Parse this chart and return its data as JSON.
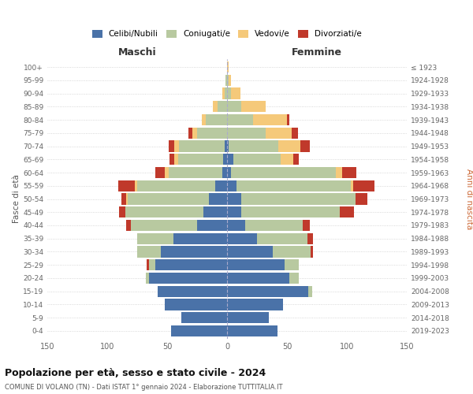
{
  "age_groups": [
    "0-4",
    "5-9",
    "10-14",
    "15-19",
    "20-24",
    "25-29",
    "30-34",
    "35-39",
    "40-44",
    "45-49",
    "50-54",
    "55-59",
    "60-64",
    "65-69",
    "70-74",
    "75-79",
    "80-84",
    "85-89",
    "90-94",
    "95-99",
    "100+"
  ],
  "birth_years": [
    "2019-2023",
    "2014-2018",
    "2009-2013",
    "2004-2008",
    "1999-2003",
    "1994-1998",
    "1989-1993",
    "1984-1988",
    "1979-1983",
    "1974-1978",
    "1969-1973",
    "1964-1968",
    "1959-1963",
    "1954-1958",
    "1949-1953",
    "1944-1948",
    "1939-1943",
    "1934-1938",
    "1929-1933",
    "1924-1928",
    "≤ 1923"
  ],
  "male": {
    "celibi": [
      47,
      38,
      52,
      58,
      65,
      60,
      55,
      45,
      25,
      20,
      15,
      10,
      4,
      3,
      2,
      0,
      0,
      0,
      0,
      0,
      0
    ],
    "coniugati": [
      0,
      0,
      0,
      0,
      3,
      5,
      20,
      30,
      55,
      65,
      68,
      65,
      45,
      38,
      38,
      25,
      18,
      8,
      2,
      1,
      0
    ],
    "vedovi": [
      0,
      0,
      0,
      0,
      0,
      0,
      0,
      0,
      0,
      0,
      1,
      2,
      3,
      3,
      4,
      4,
      3,
      4,
      2,
      0,
      0
    ],
    "divorziati": [
      0,
      0,
      0,
      0,
      0,
      2,
      0,
      0,
      4,
      5,
      4,
      14,
      8,
      4,
      5,
      3,
      0,
      0,
      0,
      0,
      0
    ]
  },
  "female": {
    "nubili": [
      42,
      35,
      47,
      68,
      52,
      48,
      38,
      25,
      15,
      12,
      12,
      8,
      3,
      5,
      1,
      0,
      0,
      0,
      0,
      0,
      0
    ],
    "coniugate": [
      0,
      0,
      0,
      3,
      8,
      12,
      32,
      42,
      48,
      82,
      95,
      95,
      88,
      40,
      42,
      32,
      22,
      12,
      3,
      1,
      0
    ],
    "vedove": [
      0,
      0,
      0,
      0,
      0,
      0,
      0,
      0,
      0,
      0,
      0,
      2,
      5,
      10,
      18,
      22,
      28,
      20,
      8,
      2,
      1
    ],
    "divorziate": [
      0,
      0,
      0,
      0,
      0,
      0,
      2,
      5,
      6,
      12,
      10,
      18,
      12,
      5,
      8,
      5,
      2,
      0,
      0,
      0,
      0
    ]
  },
  "colors": {
    "celibi": "#4a72a8",
    "coniugati": "#b8c9a0",
    "vedovi": "#f5c97a",
    "divorziati": "#c0392b"
  },
  "title": "Popolazione per età, sesso e stato civile - 2024",
  "subtitle": "COMUNE DI VOLANO (TN) - Dati ISTAT 1° gennaio 2024 - Elaborazione TUTTITALIA.IT",
  "xlabel_left": "Maschi",
  "xlabel_right": "Femmine",
  "ylabel_left": "Fasce di età",
  "ylabel_right": "Anni di nascita",
  "xlim": 150,
  "background_color": "#ffffff",
  "legend_labels": [
    "Celibi/Nubili",
    "Coniugati/e",
    "Vedovi/e",
    "Divorziati/e"
  ],
  "grid_color": "#cccccc",
  "bar_height": 0.85
}
